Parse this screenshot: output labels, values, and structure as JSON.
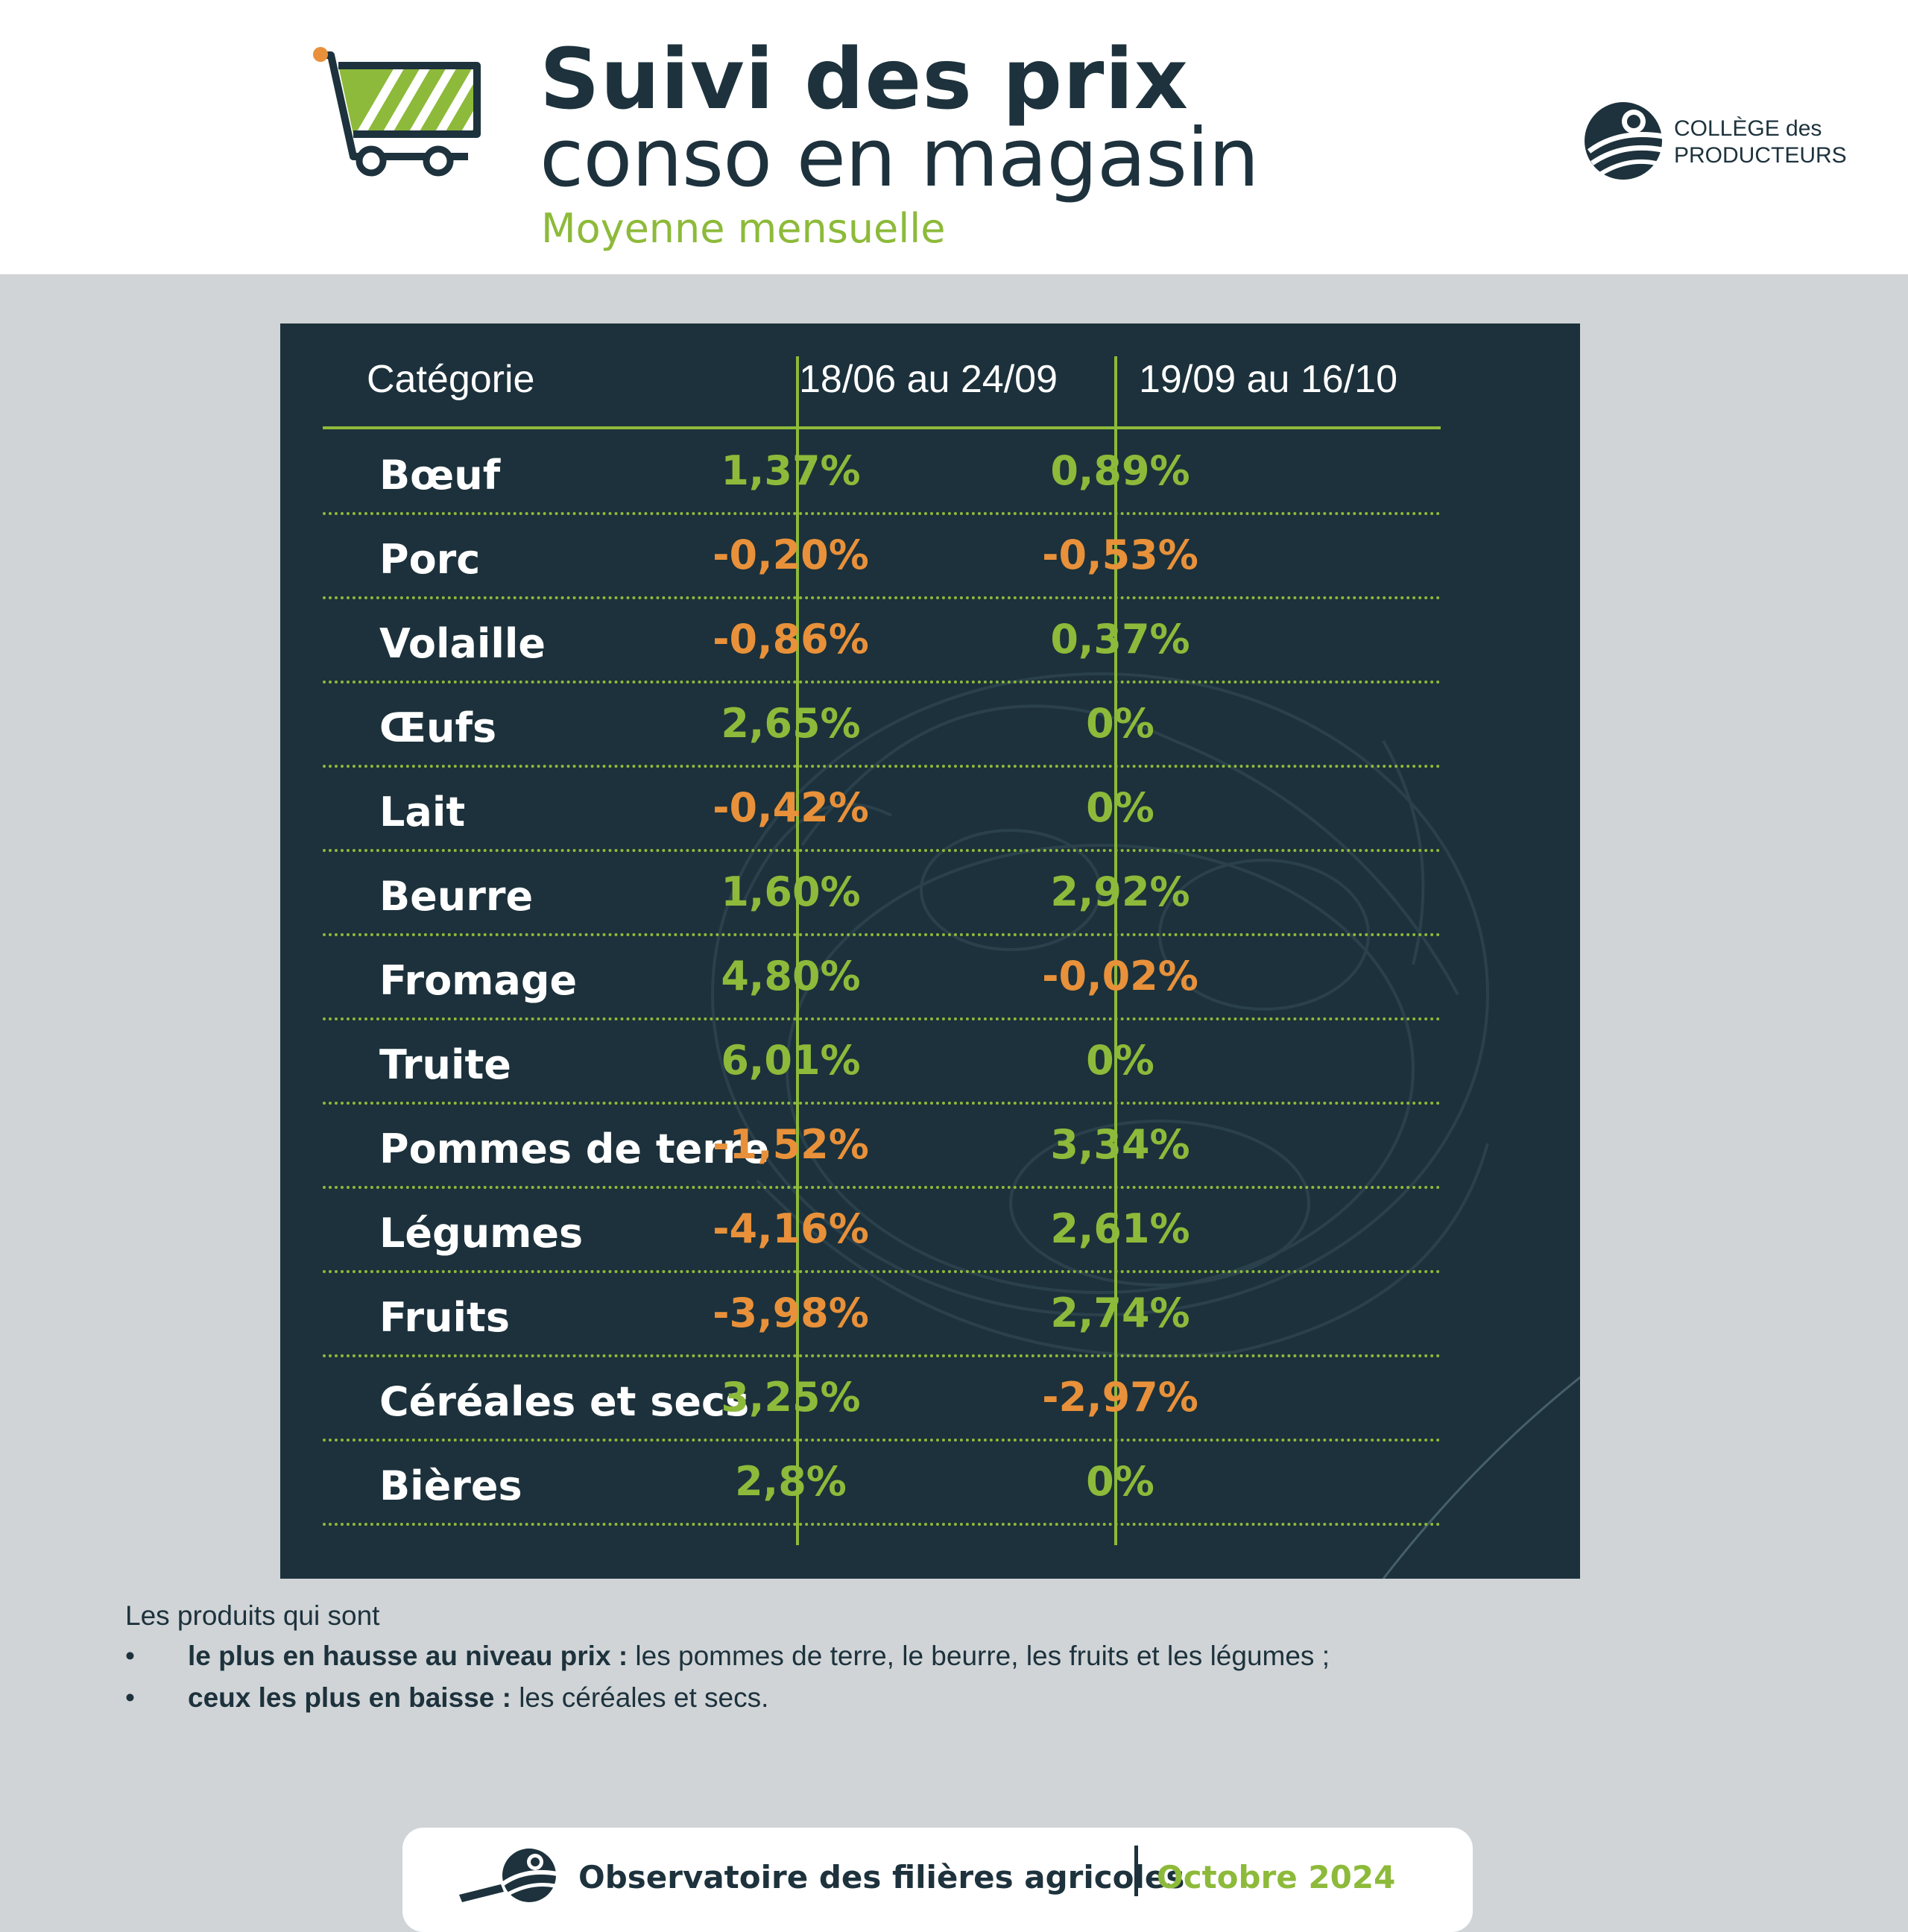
{
  "header": {
    "title_line1": "Suivi des prix",
    "title_line2": "conso en magasin",
    "subtitle": "Moyenne mensuelle",
    "logo_line1": "COLLÈGE des",
    "logo_line2": "PRODUCTEURS"
  },
  "table": {
    "columns": [
      "Catégorie",
      "18/06 au 24/09",
      "19/09 au 16/10"
    ],
    "rows": [
      {
        "category": "Bœuf",
        "p1": "1,37%",
        "p2": "0,89%"
      },
      {
        "category": "Porc",
        "p1": "-0,20%",
        "p2": "-0,53%"
      },
      {
        "category": "Volaille",
        "p1": "-0,86%",
        "p2": "0,37%"
      },
      {
        "category": "Œufs",
        "p1": "2,65%",
        "p2": "0%"
      },
      {
        "category": "Lait",
        "p1": "-0,42%",
        "p2": "0%"
      },
      {
        "category": "Beurre",
        "p1": "1,60%",
        "p2": "2,92%"
      },
      {
        "category": "Fromage",
        "p1": "4,80%",
        "p2": "-0,02%"
      },
      {
        "category": "Truite",
        "p1": "6,01%",
        "p2": "0%"
      },
      {
        "category": "Pommes de terre",
        "p1": "-1,52%",
        "p2": "3,34%"
      },
      {
        "category": "Légumes",
        "p1": "-4,16%",
        "p2": "2,61%"
      },
      {
        "category": "Fruits",
        "p1": "-3,98%",
        "p2": "2,74%"
      },
      {
        "category": "Céréales et secs",
        "p1": "3,25%",
        "p2": "-2,97%"
      },
      {
        "category": "Bières",
        "p1": "2,8%",
        "p2": "0%"
      }
    ]
  },
  "notes": {
    "intro": "Les produits qui sont",
    "bullet": "•",
    "item1_bold": "le plus en hausse au niveau prix :",
    "item1_text": " les pommes de terre, le beurre, les fruits et les légumes ;",
    "item2_bold": "ceux les plus en baisse :",
    "item2_text": " les céréales et secs."
  },
  "footer": {
    "label": "Observatoire des filières agricoles",
    "date": "Octobre 2024"
  },
  "colors": {
    "navy": "#1c313b",
    "green": "#8dba3a",
    "orange": "#e8913a",
    "background": "#d0d4d7"
  }
}
